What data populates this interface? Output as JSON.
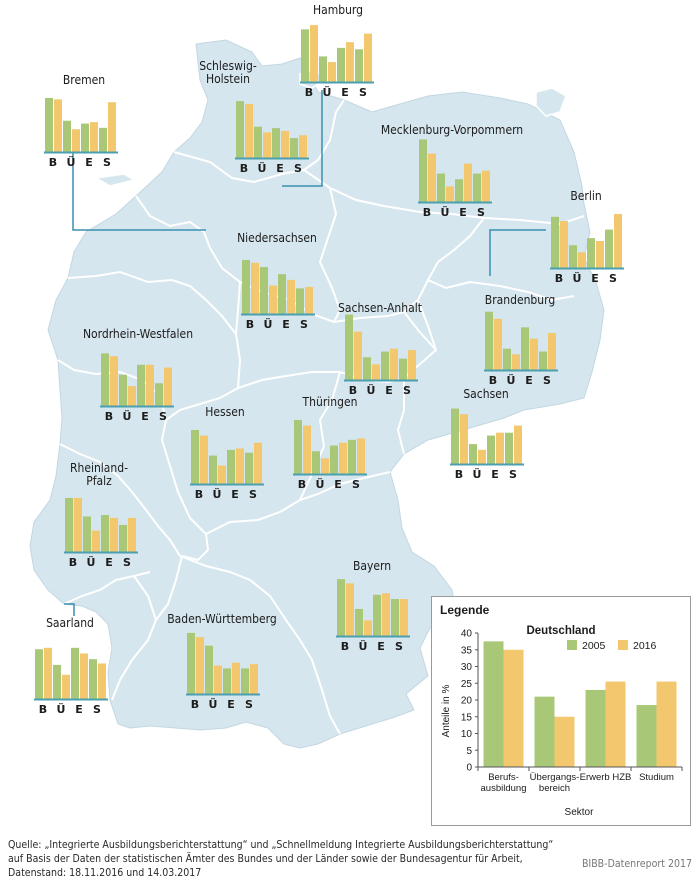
{
  "legend": {
    "title": "Legende",
    "chart_title": "Deutschland",
    "series_2005": "2005",
    "series_2016": "2016",
    "ylabel": "Anteile in %",
    "xlabel": "Sektor",
    "ylim": [
      0,
      40
    ],
    "yticks": [
      "0",
      "5",
      "10",
      "15",
      "20",
      "25",
      "30",
      "35",
      "40"
    ],
    "categories": [
      [
        "Berufs-",
        "ausbildung"
      ],
      [
        "Übergangs-",
        "bereich"
      ],
      [
        "Erwerb HZB"
      ],
      [
        "Studium"
      ]
    ]
  },
  "colors": {
    "map_fill": "#d6e6ee",
    "map_stroke": "#ffffff",
    "series_2005": "#a8c878",
    "series_2016": "#f2c76e",
    "baseline": "#4a9fb0",
    "leader": "#3a8fb0"
  },
  "state_axis_letters": [
    "B",
    "Ü",
    "E",
    "S"
  ],
  "source": "Quelle: „Integrierte Ausbildungsberichterstattung“ und „Schnellmeldung Integrierte Ausbildungsberichterstattung“ auf Basis der Daten der statistischen Ämter des Bundes und der Länder sowie der Bundesagentur für Arbeit, Datenstand: 18.11.2016 und 14.03.2017",
  "credit": "BIBB-Datenreport 2017",
  "chart_data": [
    {
      "type": "bar",
      "title": "Deutschland",
      "categories": [
        "Berufsausbildung",
        "Übergangsbereich",
        "Erwerb HZB",
        "Studium"
      ],
      "series": [
        {
          "name": "2005",
          "values": [
            37.5,
            21.0,
            23.0,
            18.5
          ]
        },
        {
          "name": "2016",
          "values": [
            35.0,
            15.0,
            25.5,
            25.5
          ]
        }
      ],
      "ylabel": "Anteile in %",
      "xlabel": "Sektor",
      "ylim": [
        0,
        40
      ]
    },
    {
      "type": "bar",
      "title": "Hamburg",
      "categories": [
        "B",
        "Ü",
        "E",
        "S"
      ],
      "series": [
        {
          "name": "2005",
          "values": [
            37,
            18,
            24,
            23
          ]
        },
        {
          "name": "2016",
          "values": [
            40,
            14,
            28,
            34
          ]
        }
      ]
    },
    {
      "type": "bar",
      "title": "Bremen",
      "categories": [
        "B",
        "Ü",
        "E",
        "S"
      ],
      "series": [
        {
          "name": "2005",
          "values": [
            38,
            22,
            20,
            17
          ]
        },
        {
          "name": "2016",
          "values": [
            37,
            16,
            21,
            35
          ]
        }
      ]
    },
    {
      "type": "bar",
      "title": "Schleswig-Holstein",
      "categories": [
        "B",
        "Ü",
        "E",
        "S"
      ],
      "series": [
        {
          "name": "2005",
          "values": [
            40,
            22,
            21,
            14
          ]
        },
        {
          "name": "2016",
          "values": [
            38,
            18,
            19,
            16
          ]
        }
      ]
    },
    {
      "type": "bar",
      "title": "Mecklenburg-Vorpommern",
      "categories": [
        "B",
        "Ü",
        "E",
        "S"
      ],
      "series": [
        {
          "name": "2005",
          "values": [
            44,
            20,
            16,
            20
          ]
        },
        {
          "name": "2016",
          "values": [
            34,
            11,
            27,
            22
          ]
        }
      ]
    },
    {
      "type": "bar",
      "title": "Berlin",
      "categories": [
        "B",
        "Ü",
        "E",
        "S"
      ],
      "series": [
        {
          "name": "2005",
          "values": [
            36,
            16,
            21,
            27
          ]
        },
        {
          "name": "2016",
          "values": [
            33,
            11,
            19,
            38
          ]
        }
      ]
    },
    {
      "type": "bar",
      "title": "Niedersachsen",
      "categories": [
        "B",
        "Ü",
        "E",
        "S"
      ],
      "series": [
        {
          "name": "2005",
          "values": [
            38,
            33,
            28,
            18
          ]
        },
        {
          "name": "2016",
          "values": [
            36,
            20,
            24,
            19
          ]
        }
      ]
    },
    {
      "type": "bar",
      "title": "Brandenburg",
      "categories": [
        "B",
        "Ü",
        "E",
        "S"
      ],
      "series": [
        {
          "name": "2005",
          "values": [
            41,
            15,
            30,
            13
          ]
        },
        {
          "name": "2016",
          "values": [
            36,
            11,
            22,
            26
          ]
        }
      ]
    },
    {
      "type": "bar",
      "title": "Sachsen-Anhalt",
      "categories": [
        "B",
        "Ü",
        "E",
        "S"
      ],
      "series": [
        {
          "name": "2005",
          "values": [
            46,
            16,
            20,
            15
          ]
        },
        {
          "name": "2016",
          "values": [
            34,
            11,
            22,
            21
          ]
        }
      ]
    },
    {
      "type": "bar",
      "title": "Nordrhein-Westfalen",
      "categories": [
        "B",
        "Ü",
        "E",
        "S"
      ],
      "series": [
        {
          "name": "2005",
          "values": [
            37,
            22,
            29,
            16
          ]
        },
        {
          "name": "2016",
          "values": [
            35,
            14,
            29,
            27
          ]
        }
      ]
    },
    {
      "type": "bar",
      "title": "Hessen",
      "categories": [
        "B",
        "Ü",
        "E",
        "S"
      ],
      "series": [
        {
          "name": "2005",
          "values": [
            38,
            20,
            24,
            22
          ]
        },
        {
          "name": "2016",
          "values": [
            34,
            13,
            25,
            29
          ]
        }
      ]
    },
    {
      "type": "bar",
      "title": "Thüringen",
      "categories": [
        "B",
        "Ü",
        "E",
        "S"
      ],
      "series": [
        {
          "name": "2005",
          "values": [
            38,
            16,
            20,
            24
          ]
        },
        {
          "name": "2016",
          "values": [
            34,
            11,
            22,
            25
          ]
        }
      ]
    },
    {
      "type": "bar",
      "title": "Sachsen",
      "categories": [
        "B",
        "Ü",
        "E",
        "S"
      ],
      "series": [
        {
          "name": "2005",
          "values": [
            39,
            14,
            20,
            22
          ]
        },
        {
          "name": "2016",
          "values": [
            35,
            10,
            22,
            27
          ]
        }
      ]
    },
    {
      "type": "bar",
      "title": "Rheinland-Pfalz",
      "categories": [
        "B",
        "Ü",
        "E",
        "S"
      ],
      "series": [
        {
          "name": "2005",
          "values": [
            38,
            25,
            26,
            19
          ]
        },
        {
          "name": "2016",
          "values": [
            38,
            15,
            24,
            24
          ]
        }
      ]
    },
    {
      "type": "bar",
      "title": "Saarland",
      "categories": [
        "B",
        "Ü",
        "E",
        "S"
      ],
      "series": [
        {
          "name": "2005",
          "values": [
            35,
            24,
            36,
            28
          ]
        },
        {
          "name": "2016",
          "values": [
            36,
            17,
            32,
            25
          ]
        }
      ]
    },
    {
      "type": "bar",
      "title": "Bayern",
      "categories": [
        "B",
        "Ü",
        "E",
        "S"
      ],
      "series": [
        {
          "name": "2005",
          "values": [
            40,
            19,
            29,
            26
          ]
        },
        {
          "name": "2016",
          "values": [
            37,
            11,
            30,
            26
          ]
        }
      ]
    },
    {
      "type": "bar",
      "title": "Baden-Württemberg",
      "categories": [
        "B",
        "Ü",
        "E",
        "S"
      ],
      "series": [
        {
          "name": "2005",
          "values": [
            43,
            34,
            18,
            18
          ]
        },
        {
          "name": "2016",
          "values": [
            40,
            20,
            22,
            21
          ]
        }
      ]
    }
  ]
}
